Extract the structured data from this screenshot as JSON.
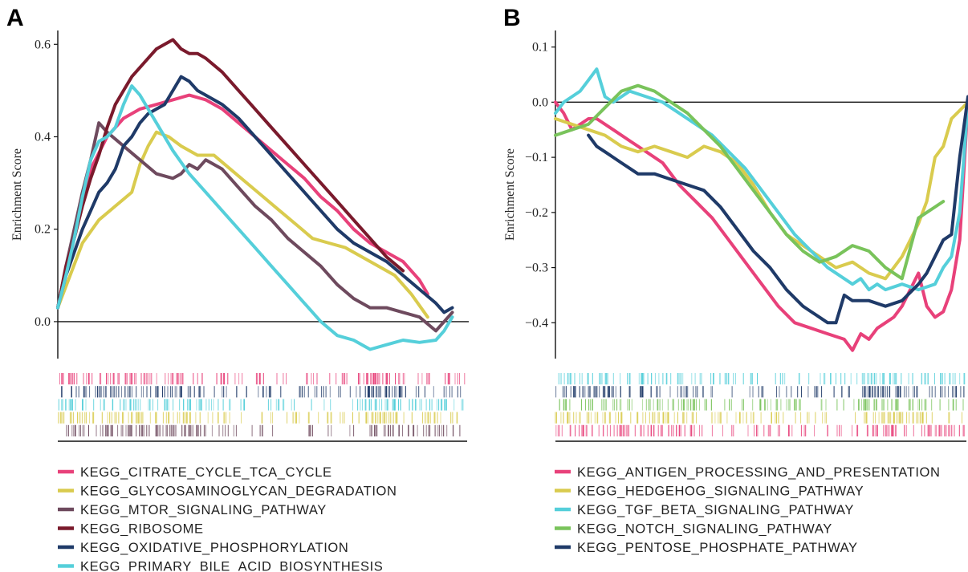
{
  "colors": {
    "pink": "#E8417A",
    "yellow": "#D9CB4E",
    "mauve": "#6E4A5E",
    "maroon": "#7A1A2C",
    "navy": "#1F3A68",
    "cyan": "#55CFDA",
    "green": "#79C35B"
  },
  "chart_data": [
    {
      "type": "line",
      "panel_label": "A",
      "ylabel": "Enrichment Score",
      "ylim": [
        -0.08,
        0.63
      ],
      "yticks": [
        0.0,
        0.2,
        0.4,
        0.6
      ],
      "ytick_labels": [
        "0.0",
        "0.2",
        "0.4",
        "0.6"
      ],
      "x_range": [
        0,
        1
      ],
      "baseline": 0,
      "series": [
        {
          "name": "KEGG_CITRATE_CYCLE_TCA_CYCLE",
          "color": "pink",
          "x": [
            0,
            0.02,
            0.05,
            0.08,
            0.12,
            0.16,
            0.2,
            0.24,
            0.28,
            0.32,
            0.36,
            0.4,
            0.44,
            0.48,
            0.52,
            0.56,
            0.6,
            0.64,
            0.68,
            0.72,
            0.76,
            0.8,
            0.84,
            0.88,
            0.9
          ],
          "y": [
            0.03,
            0.1,
            0.22,
            0.33,
            0.4,
            0.44,
            0.46,
            0.47,
            0.48,
            0.49,
            0.48,
            0.46,
            0.43,
            0.4,
            0.37,
            0.34,
            0.31,
            0.27,
            0.24,
            0.2,
            0.17,
            0.15,
            0.13,
            0.09,
            0.06
          ]
        },
        {
          "name": "KEGG_GLYCOSAMINOGLYCAN_DEGRADATION",
          "color": "yellow",
          "x": [
            0,
            0.03,
            0.06,
            0.1,
            0.14,
            0.18,
            0.2,
            0.22,
            0.24,
            0.27,
            0.3,
            0.34,
            0.38,
            0.42,
            0.46,
            0.5,
            0.54,
            0.58,
            0.62,
            0.66,
            0.7,
            0.74,
            0.78,
            0.82,
            0.86,
            0.9
          ],
          "y": [
            0.03,
            0.1,
            0.17,
            0.22,
            0.25,
            0.28,
            0.34,
            0.38,
            0.41,
            0.4,
            0.38,
            0.36,
            0.36,
            0.33,
            0.3,
            0.27,
            0.24,
            0.21,
            0.18,
            0.17,
            0.16,
            0.14,
            0.12,
            0.1,
            0.06,
            0.01
          ]
        },
        {
          "name": "KEGG_MTOR_SIGNALING_PATHWAY",
          "color": "mauve",
          "x": [
            0,
            0.02,
            0.04,
            0.06,
            0.08,
            0.1,
            0.12,
            0.16,
            0.2,
            0.24,
            0.28,
            0.3,
            0.32,
            0.34,
            0.36,
            0.4,
            0.44,
            0.48,
            0.52,
            0.56,
            0.6,
            0.64,
            0.68,
            0.72,
            0.76,
            0.8,
            0.84,
            0.88,
            0.92,
            0.94,
            0.96
          ],
          "y": [
            0.03,
            0.12,
            0.2,
            0.28,
            0.35,
            0.43,
            0.41,
            0.38,
            0.35,
            0.32,
            0.31,
            0.32,
            0.34,
            0.33,
            0.35,
            0.33,
            0.29,
            0.25,
            0.22,
            0.18,
            0.15,
            0.12,
            0.08,
            0.05,
            0.03,
            0.03,
            0.02,
            0.01,
            -0.02,
            0.0,
            0.02
          ]
        },
        {
          "name": "KEGG_RIBOSOME",
          "color": "maroon",
          "x": [
            0,
            0.02,
            0.04,
            0.06,
            0.08,
            0.1,
            0.12,
            0.14,
            0.16,
            0.18,
            0.2,
            0.22,
            0.24,
            0.26,
            0.28,
            0.3,
            0.32,
            0.34,
            0.36,
            0.4,
            0.44,
            0.48,
            0.52,
            0.56,
            0.6,
            0.64,
            0.68,
            0.72,
            0.76,
            0.8,
            0.84
          ],
          "y": [
            0.03,
            0.12,
            0.18,
            0.25,
            0.31,
            0.36,
            0.42,
            0.47,
            0.5,
            0.53,
            0.55,
            0.57,
            0.59,
            0.6,
            0.61,
            0.59,
            0.58,
            0.58,
            0.57,
            0.54,
            0.5,
            0.46,
            0.42,
            0.38,
            0.34,
            0.3,
            0.26,
            0.22,
            0.18,
            0.14,
            0.11
          ]
        },
        {
          "name": "KEGG_OXIDATIVE_PHOSPHORYLATION",
          "color": "navy",
          "x": [
            0,
            0.02,
            0.04,
            0.06,
            0.08,
            0.1,
            0.12,
            0.14,
            0.16,
            0.18,
            0.2,
            0.22,
            0.24,
            0.26,
            0.28,
            0.3,
            0.32,
            0.34,
            0.36,
            0.4,
            0.44,
            0.48,
            0.52,
            0.56,
            0.6,
            0.64,
            0.68,
            0.72,
            0.76,
            0.8,
            0.84,
            0.88,
            0.92,
            0.94,
            0.96
          ],
          "y": [
            0.03,
            0.1,
            0.15,
            0.2,
            0.24,
            0.28,
            0.3,
            0.33,
            0.38,
            0.4,
            0.43,
            0.45,
            0.46,
            0.47,
            0.5,
            0.53,
            0.52,
            0.5,
            0.49,
            0.47,
            0.44,
            0.4,
            0.36,
            0.32,
            0.28,
            0.24,
            0.2,
            0.17,
            0.15,
            0.13,
            0.1,
            0.07,
            0.04,
            0.02,
            0.03
          ]
        },
        {
          "name": "KEGG_PRIMARY_BILE_ACID_BIOSYNTHESIS",
          "color": "cyan",
          "x": [
            0,
            0.02,
            0.04,
            0.06,
            0.08,
            0.1,
            0.12,
            0.14,
            0.16,
            0.18,
            0.2,
            0.22,
            0.24,
            0.28,
            0.32,
            0.36,
            0.4,
            0.44,
            0.48,
            0.52,
            0.56,
            0.6,
            0.64,
            0.68,
            0.72,
            0.76,
            0.8,
            0.84,
            0.88,
            0.92,
            0.94,
            0.96
          ],
          "y": [
            0.03,
            0.1,
            0.18,
            0.27,
            0.35,
            0.39,
            0.4,
            0.42,
            0.47,
            0.51,
            0.49,
            0.46,
            0.43,
            0.37,
            0.32,
            0.28,
            0.24,
            0.2,
            0.16,
            0.12,
            0.08,
            0.04,
            0.0,
            -0.03,
            -0.04,
            -0.06,
            -0.05,
            -0.04,
            -0.045,
            -0.04,
            -0.02,
            0.01
          ]
        }
      ],
      "barcode_rows": [
        "pink",
        "navy",
        "cyan",
        "yellow",
        "mauve"
      ]
    },
    {
      "type": "line",
      "panel_label": "B",
      "ylabel": "Enrichment Score",
      "ylim": [
        -0.465,
        0.13
      ],
      "yticks": [
        0.1,
        0.0,
        -0.1,
        -0.2,
        -0.3,
        -0.4
      ],
      "ytick_labels": [
        "0.1",
        "0.0",
        "−0.1",
        "−0.2",
        "−0.3",
        "−0.4"
      ],
      "x_range": [
        0,
        1
      ],
      "baseline": 0,
      "series": [
        {
          "name": "KEGG_ANTIGEN_PROCESSING_AND_PRESENTATION",
          "color": "pink",
          "x": [
            0,
            0.02,
            0.04,
            0.06,
            0.08,
            0.1,
            0.14,
            0.18,
            0.22,
            0.26,
            0.3,
            0.34,
            0.38,
            0.42,
            0.46,
            0.5,
            0.54,
            0.58,
            0.62,
            0.66,
            0.7,
            0.72,
            0.74,
            0.76,
            0.78,
            0.8,
            0.82,
            0.84,
            0.86,
            0.88,
            0.9,
            0.92,
            0.94,
            0.96,
            0.98,
            1.0
          ],
          "y": [
            0.0,
            -0.02,
            -0.05,
            -0.04,
            -0.03,
            -0.03,
            -0.05,
            -0.07,
            -0.09,
            -0.11,
            -0.15,
            -0.18,
            -0.21,
            -0.25,
            -0.29,
            -0.33,
            -0.37,
            -0.4,
            -0.41,
            -0.42,
            -0.43,
            -0.45,
            -0.42,
            -0.43,
            -0.41,
            -0.4,
            -0.39,
            -0.37,
            -0.34,
            -0.31,
            -0.37,
            -0.39,
            -0.38,
            -0.34,
            -0.25,
            0.0
          ]
        },
        {
          "name": "KEGG_HEDGEHOG_SIGNALING_PATHWAY",
          "color": "yellow",
          "x": [
            0,
            0.04,
            0.08,
            0.12,
            0.16,
            0.2,
            0.24,
            0.28,
            0.32,
            0.36,
            0.4,
            0.44,
            0.48,
            0.52,
            0.56,
            0.6,
            0.64,
            0.68,
            0.72,
            0.76,
            0.8,
            0.84,
            0.88,
            0.9,
            0.92,
            0.94,
            0.96,
            1.0
          ],
          "y": [
            -0.03,
            -0.04,
            -0.05,
            -0.06,
            -0.08,
            -0.09,
            -0.08,
            -0.09,
            -0.1,
            -0.08,
            -0.09,
            -0.11,
            -0.15,
            -0.2,
            -0.24,
            -0.26,
            -0.28,
            -0.3,
            -0.29,
            -0.31,
            -0.32,
            -0.28,
            -0.22,
            -0.18,
            -0.1,
            -0.08,
            -0.03,
            0.0
          ]
        },
        {
          "name": "KEGG_TGF_BETA_SIGNALING_PATHWAY",
          "color": "cyan",
          "x": [
            0,
            0.02,
            0.04,
            0.06,
            0.08,
            0.1,
            0.12,
            0.14,
            0.18,
            0.22,
            0.26,
            0.3,
            0.34,
            0.38,
            0.42,
            0.46,
            0.5,
            0.54,
            0.58,
            0.62,
            0.66,
            0.7,
            0.72,
            0.74,
            0.76,
            0.78,
            0.8,
            0.84,
            0.88,
            0.92,
            0.94,
            0.96,
            0.98,
            1.0
          ],
          "y": [
            -0.02,
            0.0,
            0.01,
            0.02,
            0.04,
            0.06,
            0.01,
            0.0,
            0.02,
            0.01,
            0.0,
            -0.02,
            -0.04,
            -0.06,
            -0.09,
            -0.12,
            -0.16,
            -0.2,
            -0.24,
            -0.27,
            -0.3,
            -0.32,
            -0.33,
            -0.32,
            -0.34,
            -0.33,
            -0.34,
            -0.33,
            -0.34,
            -0.33,
            -0.3,
            -0.28,
            -0.2,
            0.0
          ]
        },
        {
          "name": "KEGG_NOTCH_SIGNALING_PATHWAY",
          "color": "green",
          "x": [
            0,
            0.04,
            0.08,
            0.12,
            0.16,
            0.2,
            0.24,
            0.28,
            0.32,
            0.36,
            0.4,
            0.44,
            0.48,
            0.52,
            0.56,
            0.6,
            0.64,
            0.68,
            0.72,
            0.76,
            0.8,
            0.84,
            0.88,
            0.9,
            0.92,
            0.94
          ],
          "y": [
            -0.06,
            -0.05,
            -0.04,
            -0.01,
            0.02,
            0.03,
            0.02,
            0.0,
            -0.02,
            -0.05,
            -0.08,
            -0.12,
            -0.16,
            -0.2,
            -0.24,
            -0.27,
            -0.29,
            -0.28,
            -0.26,
            -0.27,
            -0.3,
            -0.32,
            -0.21,
            -0.2,
            -0.19,
            -0.18
          ]
        },
        {
          "name": "KEGG_PENTOSE_PHOSPHATE_PATHWAY",
          "color": "navy",
          "x": [
            0.08,
            0.1,
            0.12,
            0.14,
            0.16,
            0.18,
            0.2,
            0.24,
            0.28,
            0.32,
            0.36,
            0.4,
            0.44,
            0.48,
            0.52,
            0.56,
            0.6,
            0.62,
            0.64,
            0.66,
            0.68,
            0.7,
            0.72,
            0.74,
            0.76,
            0.8,
            0.84,
            0.88,
            0.9,
            0.92,
            0.94,
            0.96,
            0.98,
            1.0
          ],
          "y": [
            -0.06,
            -0.08,
            -0.09,
            -0.1,
            -0.11,
            -0.12,
            -0.13,
            -0.13,
            -0.14,
            -0.15,
            -0.16,
            -0.19,
            -0.23,
            -0.27,
            -0.3,
            -0.34,
            -0.37,
            -0.38,
            -0.39,
            -0.4,
            -0.4,
            -0.35,
            -0.36,
            -0.36,
            -0.36,
            -0.37,
            -0.36,
            -0.33,
            -0.31,
            -0.28,
            -0.25,
            -0.24,
            -0.1,
            0.01
          ]
        }
      ],
      "barcode_rows": [
        "cyan",
        "navy",
        "green",
        "yellow",
        "pink"
      ]
    }
  ],
  "legendA": [
    {
      "label": "KEGG_CITRATE_CYCLE_TCA_CYCLE",
      "color": "pink"
    },
    {
      "label": "KEGG_GLYCOSAMINOGLYCAN_DEGRADATION",
      "color": "yellow"
    },
    {
      "label": "KEGG_MTOR_SIGNALING_PATHWAY",
      "color": "mauve"
    },
    {
      "label": "KEGG_RIBOSOME",
      "color": "maroon"
    },
    {
      "label": "KEGG_OXIDATIVE_PHOSPHORYLATION",
      "color": "navy"
    },
    {
      "label": "KEGG_PRIMARY_BILE_ACID_BIOSYNTHESIS",
      "color": "cyan"
    }
  ],
  "legendB": [
    {
      "label": "KEGG_ANTIGEN_PROCESSING_AND_PRESENTATION",
      "color": "pink"
    },
    {
      "label": "KEGG_HEDGEHOG_SIGNALING_PATHWAY",
      "color": "yellow"
    },
    {
      "label": "KEGG_TGF_BETA_SIGNALING_PATHWAY",
      "color": "cyan"
    },
    {
      "label": "KEGG_NOTCH_SIGNALING_PATHWAY",
      "color": "green"
    },
    {
      "label": "KEGG_PENTOSE_PHOSPHATE_PATHWAY",
      "color": "navy"
    }
  ]
}
